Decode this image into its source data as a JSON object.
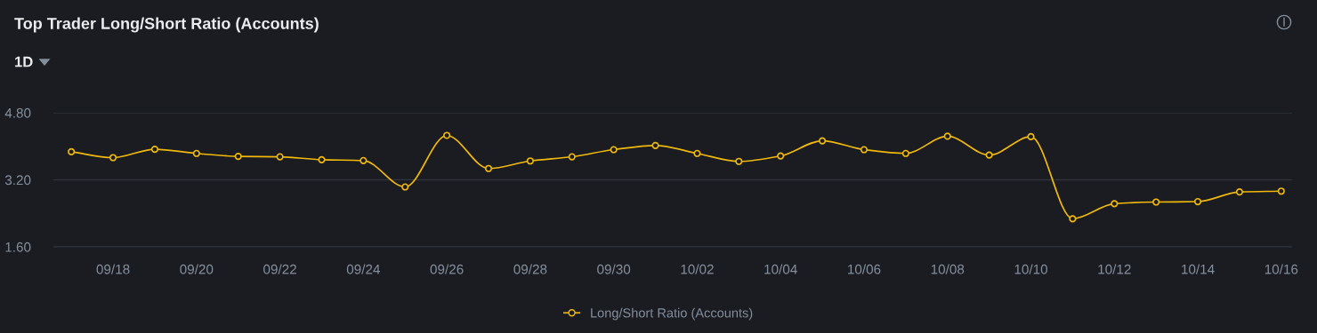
{
  "chart_data": {
    "type": "line",
    "title": "Top Trader Long/Short Ratio (Accounts)",
    "annotations": [
      "1D"
    ],
    "categories": [
      null,
      "09/18",
      null,
      "09/20",
      null,
      "09/22",
      null,
      "09/24",
      null,
      "09/26",
      null,
      "09/28",
      null,
      "09/30",
      null,
      "10/02",
      null,
      "10/04",
      null,
      "10/06",
      null,
      "10/08",
      null,
      "10/10",
      null,
      "10/12",
      null,
      "10/14",
      null,
      "10/16"
    ],
    "series": [
      {
        "name": "Long/Short Ratio (Accounts)",
        "color": "#f0b90b",
        "values": [
          3.87,
          3.73,
          3.93,
          3.83,
          3.76,
          3.75,
          3.68,
          3.66,
          3.03,
          4.26,
          3.47,
          3.65,
          3.75,
          3.92,
          4.02,
          3.83,
          3.64,
          3.77,
          4.13,
          3.92,
          3.83,
          4.24,
          3.79,
          4.23,
          2.27,
          2.63,
          2.67,
          2.68,
          2.91,
          2.93
        ]
      }
    ],
    "ylim": [
      1.6,
      4.8
    ],
    "yticks": [
      {
        "value": 1.6,
        "label": "1.60"
      },
      {
        "value": 3.2,
        "label": "3.20"
      },
      {
        "value": 4.8,
        "label": "4.80"
      }
    ],
    "grid": "y",
    "legend": "bottom",
    "marker": "circle",
    "line_style": "solid"
  }
}
